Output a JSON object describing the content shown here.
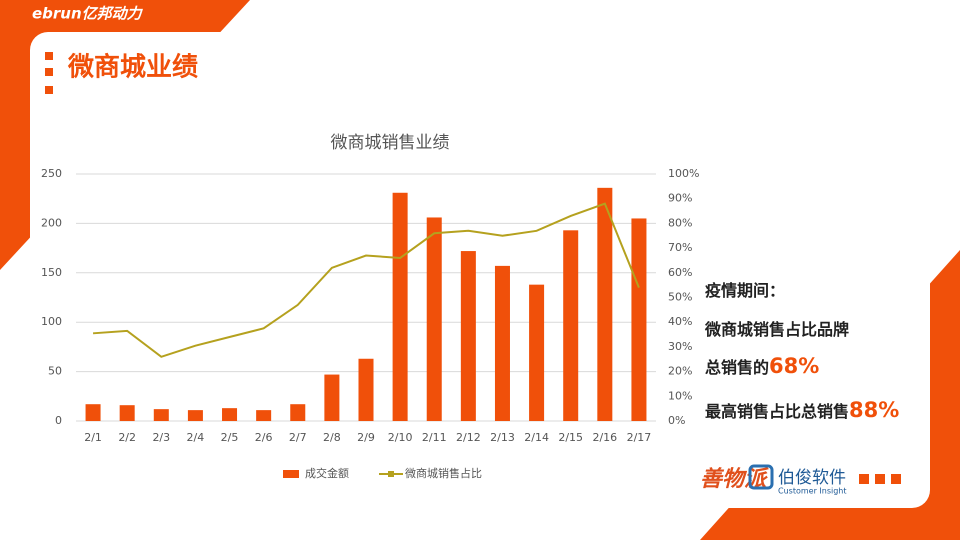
{
  "header": {
    "logo": "ebrun亿邦动力",
    "title": "微商城业绩"
  },
  "chart_data": {
    "type": "bar",
    "title": "微商城销售业绩",
    "categories": [
      "2/1",
      "2/2",
      "2/3",
      "2/4",
      "2/5",
      "2/6",
      "2/7",
      "2/8",
      "2/9",
      "2/10",
      "2/11",
      "2/12",
      "2/13",
      "2/14",
      "2/15",
      "2/16",
      "2/17"
    ],
    "series": [
      {
        "name": "成交金额",
        "type": "bar",
        "color": "#f0500a",
        "values": [
          17,
          16,
          12,
          11,
          13,
          11,
          17,
          47,
          63,
          231,
          206,
          172,
          157,
          138,
          193,
          236,
          205
        ]
      },
      {
        "name": "微商城销售占比",
        "type": "line",
        "axis": "y2",
        "color": "#b5a11e",
        "values": [
          35.5,
          36.5,
          26,
          30.5,
          34,
          37.5,
          47,
          62,
          67,
          66,
          76,
          77,
          75,
          77,
          83,
          88,
          54
        ]
      }
    ],
    "ylim": [
      0,
      250
    ],
    "yticks": [
      0,
      50,
      100,
      150,
      200,
      250
    ],
    "y2lim": [
      0,
      100
    ],
    "y2ticks": [
      {
        "value": 0,
        "label": "0%"
      },
      {
        "value": 10,
        "label": "10%"
      },
      {
        "value": 20,
        "label": "20%"
      },
      {
        "value": 30,
        "label": "30%"
      },
      {
        "value": 40,
        "label": "40%"
      },
      {
        "value": 50,
        "label": "50%"
      },
      {
        "value": 60,
        "label": "60%"
      },
      {
        "value": 70,
        "label": "70%"
      },
      {
        "value": 80,
        "label": "80%"
      },
      {
        "value": 90,
        "label": "90%"
      },
      {
        "value": 100,
        "label": "100%"
      }
    ],
    "grid": true,
    "legend": "bottom"
  },
  "notes": {
    "line1": "疫情期间：",
    "line2": "微商城销售占比品牌",
    "line3": "总销售的",
    "highlight1": "68%",
    "line4": "最高销售占比总销售",
    "highlight2": "88%"
  },
  "footer": {
    "brand1": "善物派",
    "brand2": "伯俊软件",
    "brand2_sub": "Customer Insight"
  }
}
